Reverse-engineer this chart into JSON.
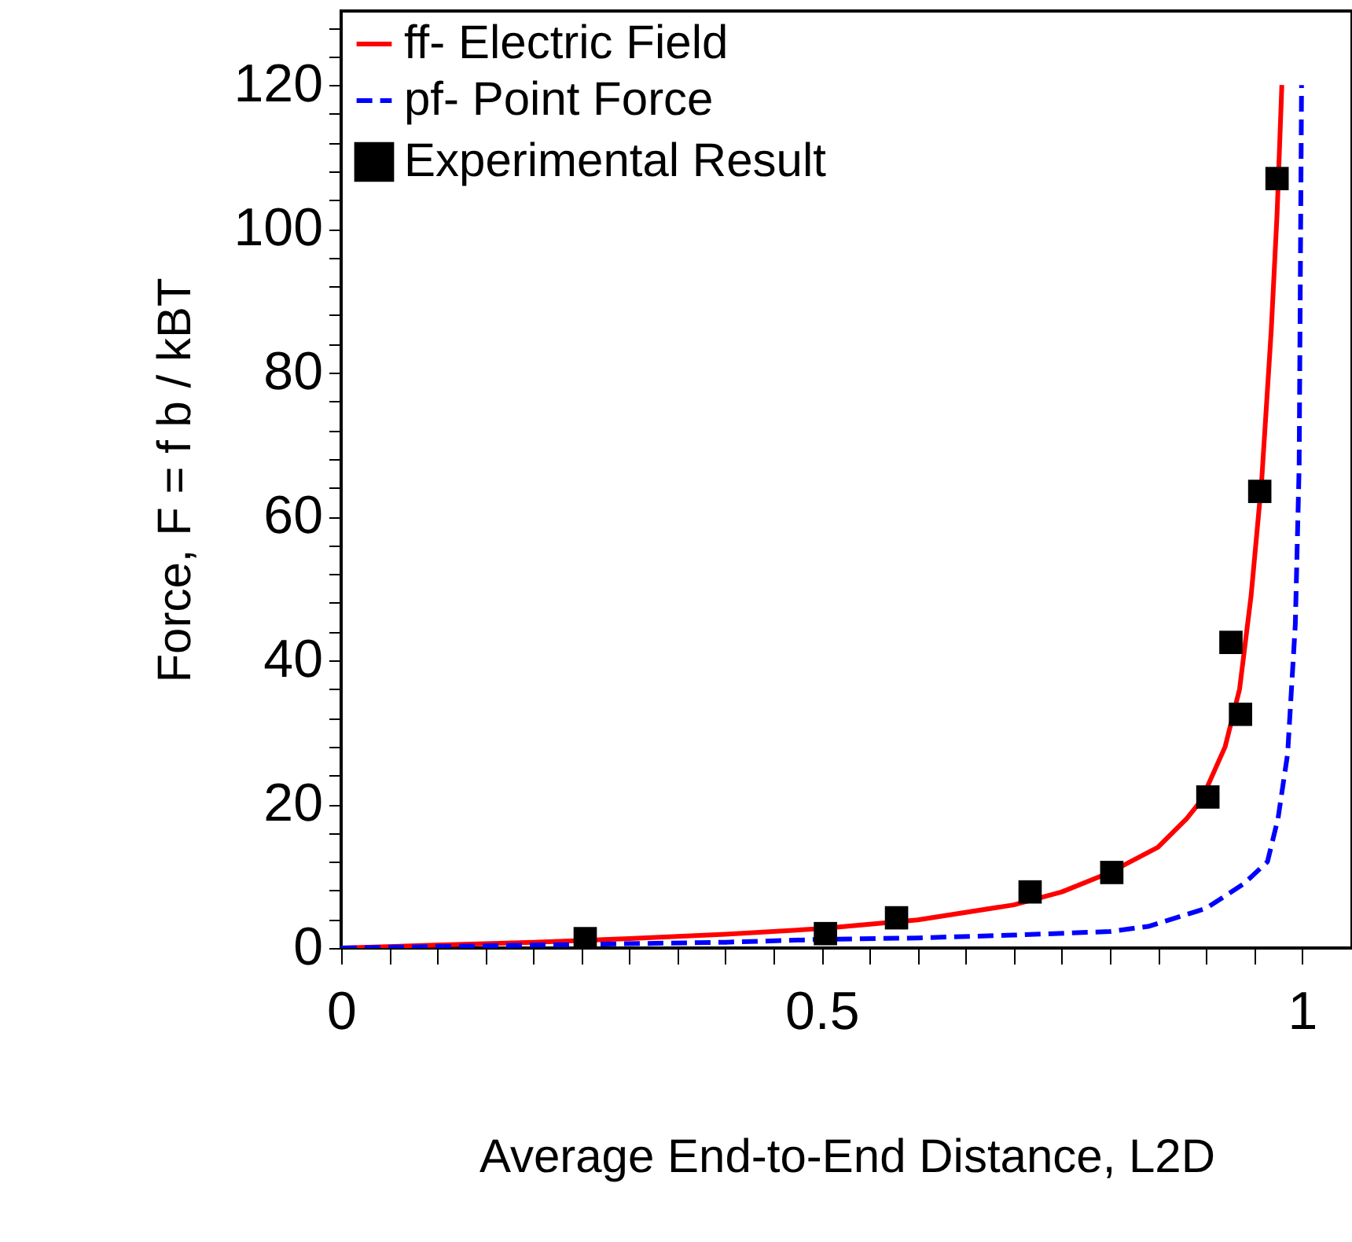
{
  "chart_data": {
    "type": "line",
    "xlabel": "Average End-to-End Distance, L2D",
    "ylabel": "Force, F = f b / kBT",
    "xlim": [
      0,
      1.052
    ],
    "ylim": [
      0,
      130.3
    ],
    "xticks": [
      0,
      {
        "value": 0.05,
        "label": null
      },
      {
        "value": 0.1,
        "label": null
      },
      {
        "value": 0.15,
        "label": null
      },
      {
        "value": 0.2,
        "label": null
      },
      {
        "value": 0.25,
        "label": null
      },
      {
        "value": 0.3,
        "label": null
      },
      {
        "value": 0.35,
        "label": null
      },
      {
        "value": 0.4,
        "label": null
      },
      {
        "value": 0.45,
        "label": null
      },
      0.5,
      {
        "value": 0.55,
        "label": null
      },
      {
        "value": 0.6,
        "label": null
      },
      {
        "value": 0.65,
        "label": null
      },
      {
        "value": 0.7,
        "label": null
      },
      {
        "value": 0.75,
        "label": null
      },
      {
        "value": 0.8,
        "label": null
      },
      {
        "value": 0.85,
        "label": null
      },
      {
        "value": 0.9,
        "label": null
      },
      {
        "value": 0.95,
        "label": null
      },
      1
    ],
    "yticks": [
      0,
      {
        "value": 4,
        "label": null
      },
      {
        "value": 8,
        "label": null
      },
      {
        "value": 12,
        "label": null
      },
      {
        "value": 16,
        "label": null
      },
      20,
      {
        "value": 24,
        "label": null
      },
      {
        "value": 28,
        "label": null
      },
      {
        "value": 32,
        "label": null
      },
      {
        "value": 36,
        "label": null
      },
      40,
      {
        "value": 44,
        "label": null
      },
      {
        "value": 48,
        "label": null
      },
      {
        "value": 52,
        "label": null
      },
      {
        "value": 56,
        "label": null
      },
      60,
      {
        "value": 64,
        "label": null
      },
      {
        "value": 68,
        "label": null
      },
      {
        "value": 72,
        "label": null
      },
      {
        "value": 76,
        "label": null
      },
      80,
      {
        "value": 84,
        "label": null
      },
      {
        "value": 88,
        "label": null
      },
      {
        "value": 92,
        "label": null
      },
      {
        "value": 96,
        "label": null
      },
      100,
      {
        "value": 104,
        "label": null
      },
      {
        "value": 108,
        "label": null
      },
      {
        "value": 112,
        "label": null
      },
      {
        "value": 116,
        "label": null
      },
      120,
      {
        "value": 124,
        "label": null
      },
      {
        "value": 128,
        "label": null
      }
    ],
    "grid": false,
    "legend": "top left",
    "series": [
      {
        "name": "ff- Electric Field",
        "color": "#ff0000",
        "line_style": "solid",
        "x": [
          0,
          0.1,
          0.2,
          0.3,
          0.4,
          0.5,
          0.6,
          0.7,
          0.75,
          0.8,
          0.85,
          0.88,
          0.895,
          0.92,
          0.935,
          0.947,
          0.958,
          0.968,
          0.974,
          0.979
        ],
        "values": [
          0,
          0.4,
          0.8,
          1.3,
          1.9,
          2.7,
          3.9,
          6,
          7.8,
          10.5,
          14,
          18,
          20.5,
          28,
          36,
          49,
          65,
          86,
          102,
          120
        ]
      },
      {
        "name": "pf- Point Force",
        "color": "#0000ff",
        "line_style": "dashed",
        "x": [
          0,
          0.2,
          0.4,
          0.5,
          0.6,
          0.7,
          0.8,
          0.84,
          0.9,
          0.94,
          0.964,
          0.975,
          0.985,
          0.993,
          0.997,
          0.9995
        ],
        "values": [
          0,
          0.4,
          0.8,
          1.2,
          1.4,
          1.8,
          2.3,
          3,
          5.5,
          9,
          12,
          18,
          27,
          45,
          67,
          120
        ]
      },
      {
        "name": "Experimental Result",
        "type": "scatter",
        "color": "#000000",
        "marker": "square",
        "x": [
          0.254,
          0.504,
          0.578,
          0.717,
          0.802,
          0.902,
          0.926,
          0.936,
          0.956,
          0.974
        ],
        "values": [
          1.3,
          2,
          4.2,
          7.8,
          10.5,
          21,
          42.5,
          32.5,
          63.5,
          107
        ]
      }
    ]
  }
}
